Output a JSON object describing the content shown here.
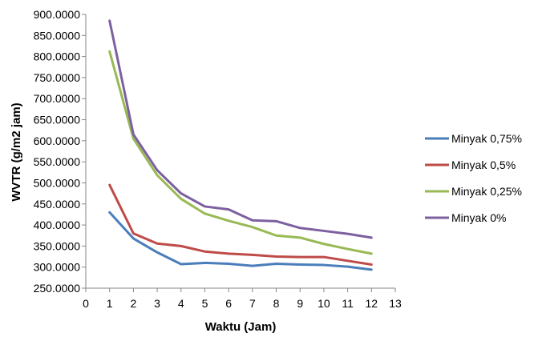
{
  "chart_data": {
    "type": "line",
    "title": "",
    "xlabel": "Waktu (Jam)",
    "ylabel": "WVTR  (g/m2 jam)",
    "xlim": [
      0,
      13
    ],
    "ylim": [
      250,
      900
    ],
    "x_ticks": [
      0,
      1,
      2,
      3,
      4,
      5,
      6,
      7,
      8,
      9,
      10,
      11,
      12,
      13
    ],
    "y_ticks": [
      "250.0000",
      "300.0000",
      "350.0000",
      "400.0000",
      "450.0000",
      "500.0000",
      "550.0000",
      "600.0000",
      "650.0000",
      "700.0000",
      "750.0000",
      "800.0000",
      "850.0000",
      "900.0000"
    ],
    "grid": false,
    "legend_position": "right",
    "x": [
      1,
      2,
      3,
      4,
      5,
      6,
      7,
      8,
      9,
      10,
      11,
      12
    ],
    "series": [
      {
        "name": "Minyak 0,75%",
        "color": "#4a7ebb",
        "values": [
          430,
          368,
          335,
          307,
          310,
          308,
          303,
          308,
          306,
          305,
          301,
          294
        ]
      },
      {
        "name": "Minyak 0,5%",
        "color": "#be4b48",
        "values": [
          495,
          380,
          356,
          350,
          337,
          332,
          329,
          325,
          324,
          324,
          315,
          306
        ]
      },
      {
        "name": "Minyak 0,25%",
        "color": "#98b954",
        "values": [
          812,
          605,
          518,
          462,
          427,
          410,
          395,
          375,
          370,
          355,
          343,
          332
        ]
      },
      {
        "name": "Minyak 0%",
        "color": "#7d60a0",
        "values": [
          885,
          615,
          530,
          475,
          444,
          437,
          411,
          409,
          393,
          386,
          379,
          370
        ]
      }
    ]
  }
}
